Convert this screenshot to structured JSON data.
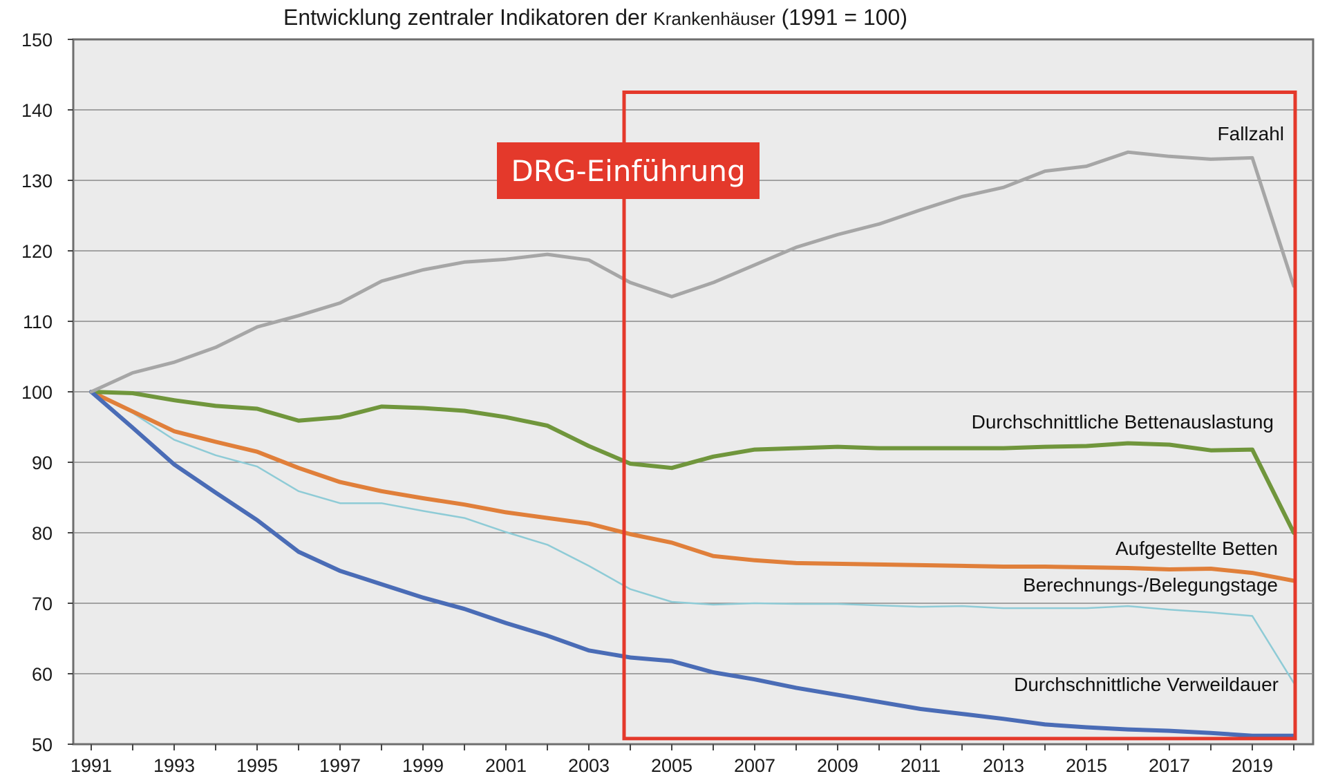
{
  "chart_data": {
    "type": "line",
    "title_main": "Entwicklung zentraler Indikatoren der ",
    "title_small": "Krankenhäuser",
    "title_suffix": " (1991 = 100)",
    "xlabel": "",
    "ylabel": "",
    "ylim": [
      50,
      150
    ],
    "xlim": [
      1991,
      2020
    ],
    "y_ticks": [
      "150",
      "140",
      "130",
      "120",
      "110",
      "100",
      "90",
      "80",
      "70",
      "60",
      "50"
    ],
    "x_ticks": [
      "1991",
      "1993",
      "1995",
      "1997",
      "1999",
      "2001",
      "2003",
      "2005",
      "2007",
      "2009",
      "2011",
      "2013",
      "2015",
      "2017",
      "2019"
    ],
    "grid": "horizontal",
    "x": [
      1991,
      1992,
      1993,
      1994,
      1995,
      1996,
      1997,
      1998,
      1999,
      2000,
      2001,
      2002,
      2003,
      2004,
      2005,
      2006,
      2007,
      2008,
      2009,
      2010,
      2011,
      2012,
      2013,
      2014,
      2015,
      2016,
      2017,
      2018,
      2019,
      2020
    ],
    "series": [
      {
        "name": "Fallzahl",
        "color": "#a6a6a6",
        "values": [
          100,
          102.7,
          104.2,
          106.3,
          109.2,
          110.8,
          112.6,
          115.7,
          117.3,
          118.4,
          118.8,
          119.5,
          118.7,
          115.5,
          113.5,
          115.5,
          118,
          120.5,
          122.3,
          123.8,
          125.8,
          127.7,
          129,
          131.3,
          132,
          134,
          133.4,
          133,
          133.2,
          115
        ]
      },
      {
        "name": "Durchschnittliche Bettenauslastung",
        "color": "#70963c",
        "values": [
          100,
          99.8,
          98.8,
          98,
          97.6,
          95.9,
          96.4,
          97.9,
          97.7,
          97.3,
          96.4,
          95.2,
          92.3,
          89.8,
          89.2,
          90.8,
          91.8,
          92,
          92.2,
          92,
          92,
          92,
          92,
          92.2,
          92.3,
          92.7,
          92.5,
          91.7,
          91.8,
          80
        ]
      },
      {
        "name": "Aufgestellte Betten",
        "color": "#e07f3a",
        "values": [
          100,
          97.2,
          94.4,
          92.9,
          91.5,
          89.2,
          87.2,
          85.9,
          84.9,
          84,
          82.9,
          82.1,
          81.3,
          79.8,
          78.6,
          76.7,
          76.1,
          75.7,
          75.6,
          75.5,
          75.4,
          75.3,
          75.2,
          75.2,
          75.1,
          75,
          74.8,
          74.9,
          74.3,
          73.2
        ]
      },
      {
        "name": "Berechnungs-/Belegungstage",
        "color": "#8ecbd6",
        "values": [
          100,
          97,
          93.2,
          91,
          89.4,
          85.9,
          84.2,
          84.2,
          83.1,
          82.1,
          80.1,
          78.3,
          75.3,
          72,
          70.2,
          69.8,
          70,
          69.9,
          69.9,
          69.7,
          69.5,
          69.6,
          69.3,
          69.3,
          69.3,
          69.6,
          69.1,
          68.7,
          68.2,
          58.7
        ]
      },
      {
        "name": "Durchschnittliche Verweildauer",
        "color": "#4a6cb6",
        "values": [
          100,
          94.9,
          89.7,
          85.7,
          81.8,
          77.3,
          74.6,
          72.7,
          70.8,
          69.2,
          67.2,
          65.4,
          63.3,
          62.3,
          61.8,
          60.2,
          59.2,
          58,
          57,
          56,
          55,
          54.3,
          53.6,
          52.8,
          52.4,
          52.1,
          51.9,
          51.6,
          51.2,
          51.2
        ]
      }
    ],
    "annotation": {
      "text": "DRG-Einführung",
      "x_start": 2004,
      "x_end": 2020,
      "y_top": 142.5,
      "y_bottom": 50.8,
      "color": "#e4392b"
    }
  }
}
